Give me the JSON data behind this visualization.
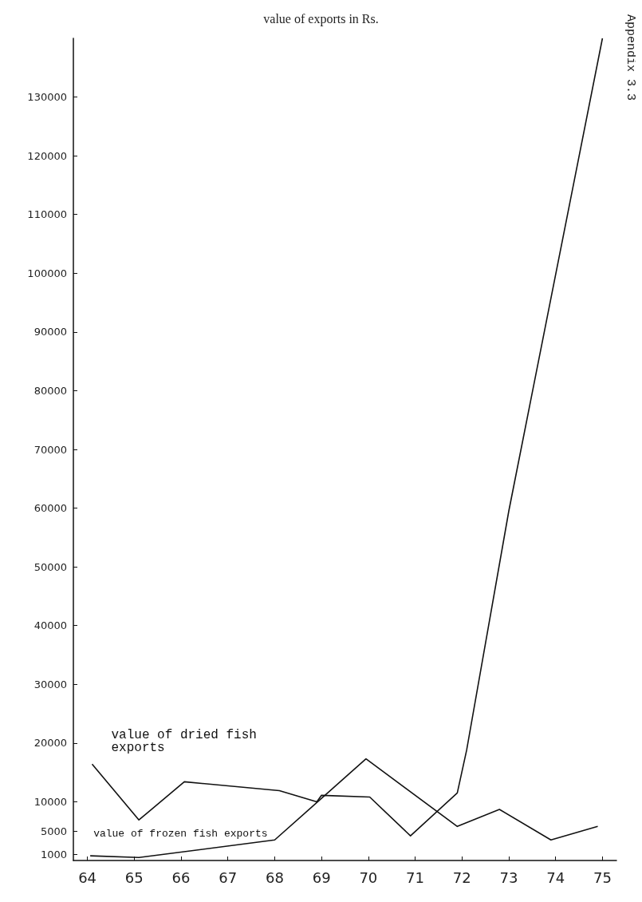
{
  "chart_data": {
    "type": "line",
    "title": "value of exports in Rs.",
    "annotations": [
      "Appendix 3.3"
    ],
    "xlim": [
      63.7,
      75.3
    ],
    "xticks": [
      64,
      65,
      66,
      67,
      68,
      69,
      70,
      71,
      72,
      73,
      74,
      75
    ],
    "ylim": [
      0,
      140000
    ],
    "yticks": [
      1000,
      5000,
      10000,
      20000,
      30000,
      40000,
      50000,
      60000,
      70000,
      80000,
      90000,
      100000,
      110000,
      120000,
      130000
    ],
    "grid": false,
    "legend": false,
    "marker": "none",
    "line_style": "solid",
    "series": [
      {
        "name": "value of dried fish\nexports",
        "color": "#111111",
        "x": [
          64.1,
          65.1,
          66.07,
          68.1,
          68.9,
          69.0,
          70.03,
          70.9,
          71.9,
          72.1,
          73.0,
          75.0
        ],
        "values": [
          16400,
          6900,
          13400,
          11900,
          10000,
          11100,
          10800,
          4200,
          11500,
          18800,
          59500,
          140000
        ]
      },
      {
        "name": "value of frozen fish exports",
        "color": "#111111",
        "x": [
          64.06,
          65.1,
          68.0,
          69.95,
          71.9,
          72.8,
          73.9,
          74.9
        ],
        "values": [
          800,
          500,
          3500,
          17300,
          5800,
          8700,
          3500,
          5800
        ]
      }
    ]
  }
}
